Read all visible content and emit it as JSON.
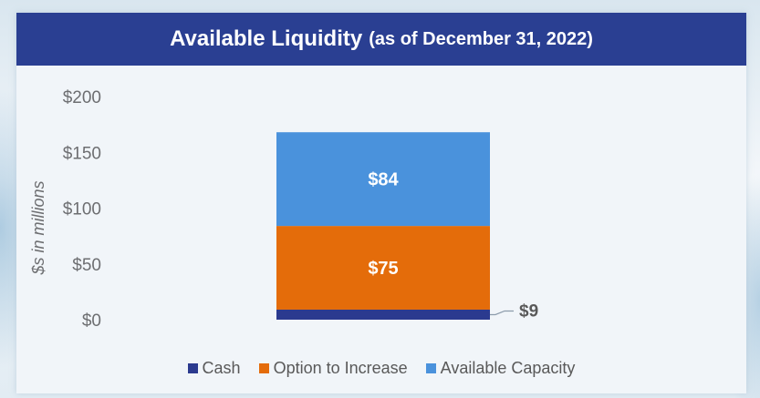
{
  "title": {
    "main": "Available Liquidity",
    "sub": "(as of December 31, 2022)"
  },
  "colors": {
    "header": "#2a3f92",
    "cash": "#2b3a8f",
    "option": "#e46c0a",
    "capacity": "#4a92dc"
  },
  "chart_data": {
    "type": "bar",
    "stacked": true,
    "categories": [
      ""
    ],
    "series": [
      {
        "name": "Cash",
        "values": [
          9
        ],
        "label": "$9",
        "color": "#2b3a8f"
      },
      {
        "name": "Option to Increase",
        "values": [
          75
        ],
        "label": "$75",
        "color": "#e46c0a"
      },
      {
        "name": "Available Capacity",
        "values": [
          84
        ],
        "label": "$84",
        "color": "#4a92dc"
      }
    ],
    "ylabel": "$s in millions",
    "ylim": [
      0,
      200
    ],
    "yticks": [
      0,
      50,
      100,
      150,
      200
    ],
    "ytick_labels": [
      "$0",
      "$50",
      "$100",
      "$150",
      "$200"
    ],
    "grid": false,
    "legend_position": "bottom"
  }
}
